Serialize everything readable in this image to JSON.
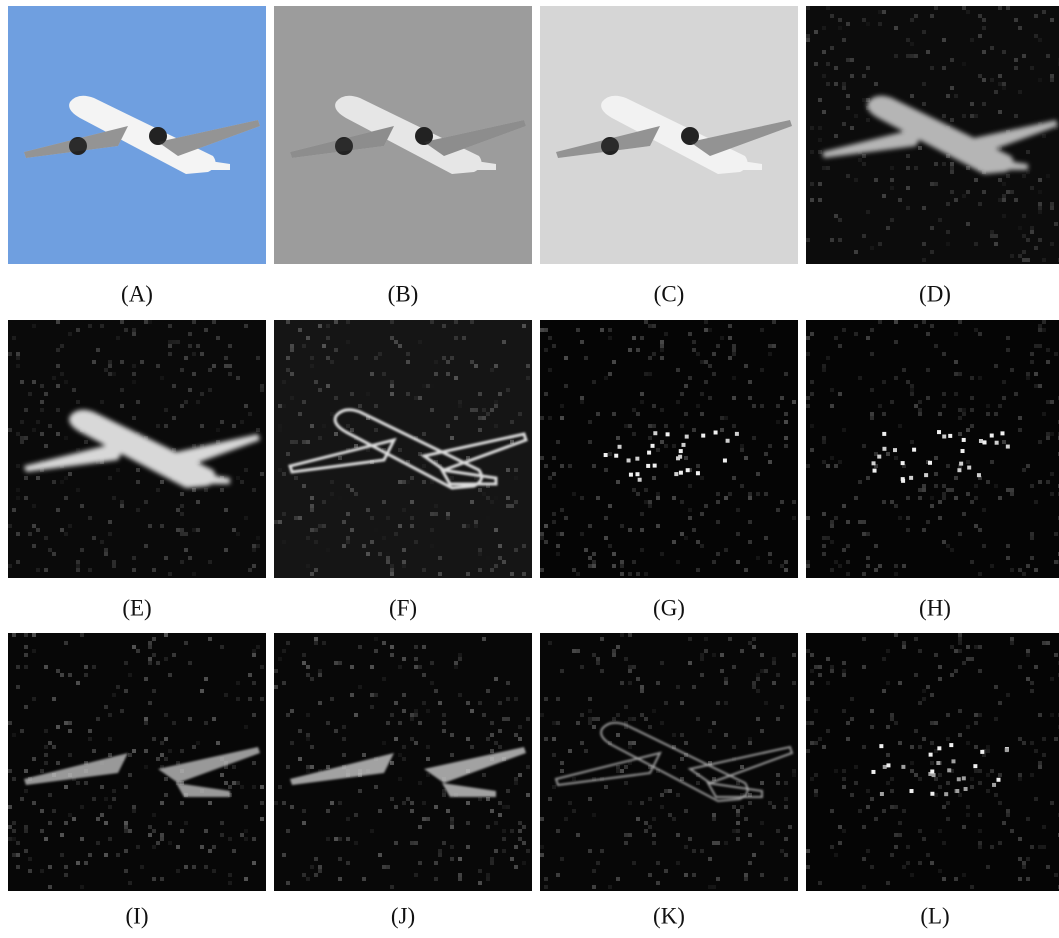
{
  "figure": {
    "panels": [
      {
        "label": "(A)"
      },
      {
        "label": "(B)"
      },
      {
        "label": "(C)"
      },
      {
        "label": "(D)"
      },
      {
        "label": "(E)"
      },
      {
        "label": "(F)"
      },
      {
        "label": "(G)"
      },
      {
        "label": "(H)"
      },
      {
        "label": "(I)"
      },
      {
        "label": "(J)"
      },
      {
        "label": "(K)"
      },
      {
        "label": "(L)"
      }
    ]
  }
}
